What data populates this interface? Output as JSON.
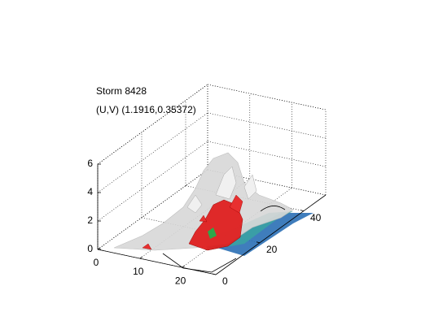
{
  "chart_data": {
    "type": "isosurface3d",
    "title": [
      "Storm 8428",
      "(U,V) (1.1916,0.35372)"
    ],
    "xlim": [
      0,
      28
    ],
    "ylim": [
      0,
      50
    ],
    "zlim": [
      0,
      6
    ],
    "xticks": [
      0,
      10,
      20
    ],
    "yticks": [
      0,
      20,
      40
    ],
    "zticks": [
      0,
      2,
      4,
      6
    ],
    "grid": true
  }
}
